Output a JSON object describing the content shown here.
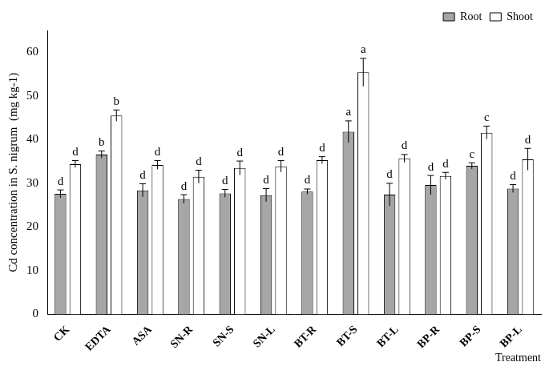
{
  "chart_data": {
    "type": "bar",
    "y_label": "Cd concentration in S. nigrum  (mg kg-1)",
    "x_label": "Treatment",
    "categories": [
      "CK",
      "EDTA",
      "ASA",
      "SN-R",
      "SN-S",
      "SN-L",
      "BT-R",
      "BT-S",
      "BT-L",
      "BP-R",
      "BP-S",
      "BP-L"
    ],
    "series": [
      {
        "name": "Root",
        "color": "#a6a6a6",
        "values": [
          27.6,
          36.6,
          28.4,
          26.4,
          27.7,
          27.3,
          28.1,
          41.8,
          27.4,
          29.6,
          34.0,
          28.8
        ],
        "error": [
          0.9,
          0.8,
          1.5,
          1.0,
          0.9,
          1.5,
          0.6,
          2.5,
          2.6,
          2.2,
          0.7,
          0.9
        ],
        "significance_letters": [
          "d",
          "b",
          "d",
          "d",
          "d",
          "d",
          "d",
          "a",
          "d",
          "d",
          "c",
          "d"
        ]
      },
      {
        "name": "Shoot",
        "color": "#ffffff",
        "values": [
          34.4,
          45.5,
          34.2,
          31.5,
          33.5,
          33.9,
          35.3,
          55.4,
          35.7,
          31.7,
          41.6,
          35.5
        ],
        "error": [
          0.8,
          1.3,
          1.0,
          1.5,
          1.6,
          1.3,
          0.8,
          3.2,
          0.9,
          0.8,
          1.5,
          2.5
        ],
        "significance_letters": [
          "d",
          "b",
          "d",
          "d",
          "d",
          "d",
          "d",
          "a",
          "d",
          "d",
          "c",
          "d"
        ]
      }
    ],
    "ylim": [
      0,
      65
    ],
    "yticks": [
      0,
      10,
      20,
      30,
      40,
      50,
      60
    ],
    "grid": false,
    "legend": "upper right"
  }
}
